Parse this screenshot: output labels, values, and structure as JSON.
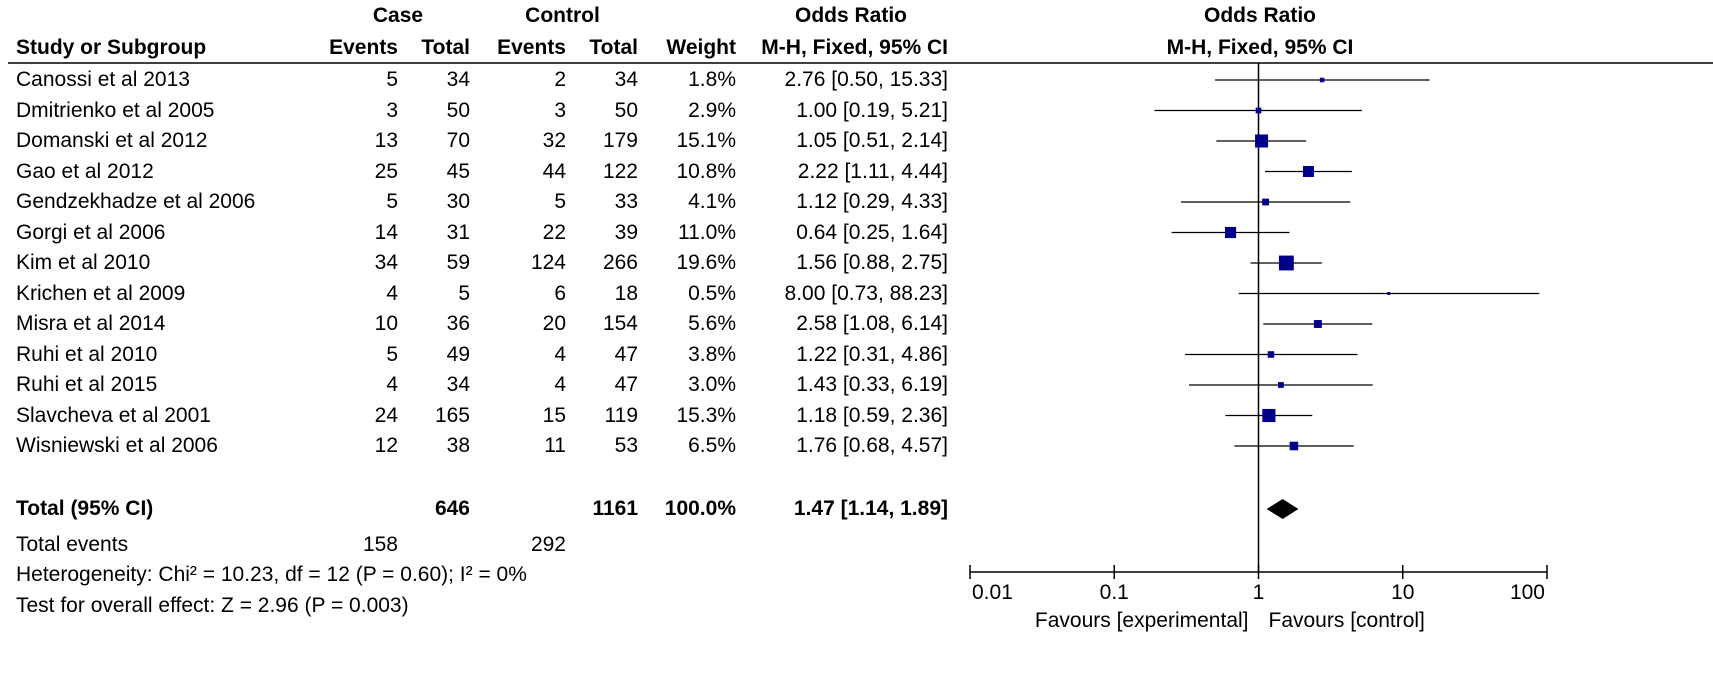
{
  "header": {
    "case_group": "Case",
    "control_group": "Control",
    "or_group": "Odds Ratio",
    "plot_group": "Odds Ratio",
    "col_study": "Study or Subgroup",
    "col_case_events": "Events",
    "col_case_total": "Total",
    "col_ctrl_events": "Events",
    "col_ctrl_total": "Total",
    "col_weight": "Weight",
    "col_ci": "M-H, Fixed, 95% CI",
    "plot_ci": "M-H, Fixed, 95% CI"
  },
  "chart_data": {
    "type": "forest",
    "x_scale": "log",
    "xlim": [
      0.01,
      100
    ],
    "x_ticks": [
      0.01,
      0.1,
      1,
      10,
      100
    ],
    "x_tick_labels": [
      "0.01",
      "0.1",
      "1",
      "10",
      "100"
    ],
    "reference_line": 1,
    "favours_left": "Favours [experimental]",
    "favours_right": "Favours [control]",
    "marker_color": "#00008b",
    "studies": [
      {
        "name": "Canossi et al 2013",
        "case_events": "5",
        "case_total": "34",
        "ctrl_events": "2",
        "ctrl_total": "34",
        "weight": "1.8%",
        "ci_text": "2.76 [0.50, 15.33]",
        "or": 2.76,
        "lo": 0.5,
        "hi": 15.33,
        "w": 1.8
      },
      {
        "name": "Dmitrienko et al 2005",
        "case_events": "3",
        "case_total": "50",
        "ctrl_events": "3",
        "ctrl_total": "50",
        "weight": "2.9%",
        "ci_text": "1.00 [0.19, 5.21]",
        "or": 1.0,
        "lo": 0.19,
        "hi": 5.21,
        "w": 2.9
      },
      {
        "name": "Domanski et al 2012",
        "case_events": "13",
        "case_total": "70",
        "ctrl_events": "32",
        "ctrl_total": "179",
        "weight": "15.1%",
        "ci_text": "1.05 [0.51, 2.14]",
        "or": 1.05,
        "lo": 0.51,
        "hi": 2.14,
        "w": 15.1
      },
      {
        "name": "Gao et al 2012",
        "case_events": "25",
        "case_total": "45",
        "ctrl_events": "44",
        "ctrl_total": "122",
        "weight": "10.8%",
        "ci_text": "2.22 [1.11, 4.44]",
        "or": 2.22,
        "lo": 1.11,
        "hi": 4.44,
        "w": 10.8
      },
      {
        "name": "Gendzekhadze et al 2006",
        "case_events": "5",
        "case_total": "30",
        "ctrl_events": "5",
        "ctrl_total": "33",
        "weight": "4.1%",
        "ci_text": "1.12 [0.29, 4.33]",
        "or": 1.12,
        "lo": 0.29,
        "hi": 4.33,
        "w": 4.1
      },
      {
        "name": "Gorgi et al 2006",
        "case_events": "14",
        "case_total": "31",
        "ctrl_events": "22",
        "ctrl_total": "39",
        "weight": "11.0%",
        "ci_text": "0.64 [0.25, 1.64]",
        "or": 0.64,
        "lo": 0.25,
        "hi": 1.64,
        "w": 11.0
      },
      {
        "name": "Kim et al 2010",
        "case_events": "34",
        "case_total": "59",
        "ctrl_events": "124",
        "ctrl_total": "266",
        "weight": "19.6%",
        "ci_text": "1.56 [0.88, 2.75]",
        "or": 1.56,
        "lo": 0.88,
        "hi": 2.75,
        "w": 19.6
      },
      {
        "name": "Krichen et al 2009",
        "case_events": "4",
        "case_total": "5",
        "ctrl_events": "6",
        "ctrl_total": "18",
        "weight": "0.5%",
        "ci_text": "8.00 [0.73, 88.23]",
        "or": 8.0,
        "lo": 0.73,
        "hi": 88.23,
        "w": 0.5
      },
      {
        "name": "Misra et al 2014",
        "case_events": "10",
        "case_total": "36",
        "ctrl_events": "20",
        "ctrl_total": "154",
        "weight": "5.6%",
        "ci_text": "2.58 [1.08, 6.14]",
        "or": 2.58,
        "lo": 1.08,
        "hi": 6.14,
        "w": 5.6
      },
      {
        "name": "Ruhi et al 2010",
        "case_events": "5",
        "case_total": "49",
        "ctrl_events": "4",
        "ctrl_total": "47",
        "weight": "3.8%",
        "ci_text": "1.22 [0.31, 4.86]",
        "or": 1.22,
        "lo": 0.31,
        "hi": 4.86,
        "w": 3.8
      },
      {
        "name": "Ruhi et al 2015",
        "case_events": "4",
        "case_total": "34",
        "ctrl_events": "4",
        "ctrl_total": "47",
        "weight": "3.0%",
        "ci_text": "1.43 [0.33, 6.19]",
        "or": 1.43,
        "lo": 0.33,
        "hi": 6.19,
        "w": 3.0
      },
      {
        "name": "Slavcheva et al 2001",
        "case_events": "24",
        "case_total": "165",
        "ctrl_events": "15",
        "ctrl_total": "119",
        "weight": "15.3%",
        "ci_text": "1.18 [0.59, 2.36]",
        "or": 1.18,
        "lo": 0.59,
        "hi": 2.36,
        "w": 15.3
      },
      {
        "name": "Wisniewski et al 2006",
        "case_events": "12",
        "case_total": "38",
        "ctrl_events": "11",
        "ctrl_total": "53",
        "weight": "6.5%",
        "ci_text": "1.76 [0.68, 4.57]",
        "or": 1.76,
        "lo": 0.68,
        "hi": 4.57,
        "w": 6.5
      }
    ],
    "total": {
      "name": "Total (95% CI)",
      "case_total": "646",
      "ctrl_total": "1161",
      "weight": "100.0%",
      "ci_text": "1.47 [1.14, 1.89]",
      "or": 1.47,
      "lo": 1.14,
      "hi": 1.89
    },
    "total_events": {
      "label": "Total events",
      "case": "158",
      "ctrl": "292"
    },
    "heterogeneity": "Heterogeneity: Chi² = 10.23, df = 12 (P = 0.60); I² = 0%",
    "overall_effect": "Test for overall effect: Z = 2.96 (P = 0.003)"
  }
}
